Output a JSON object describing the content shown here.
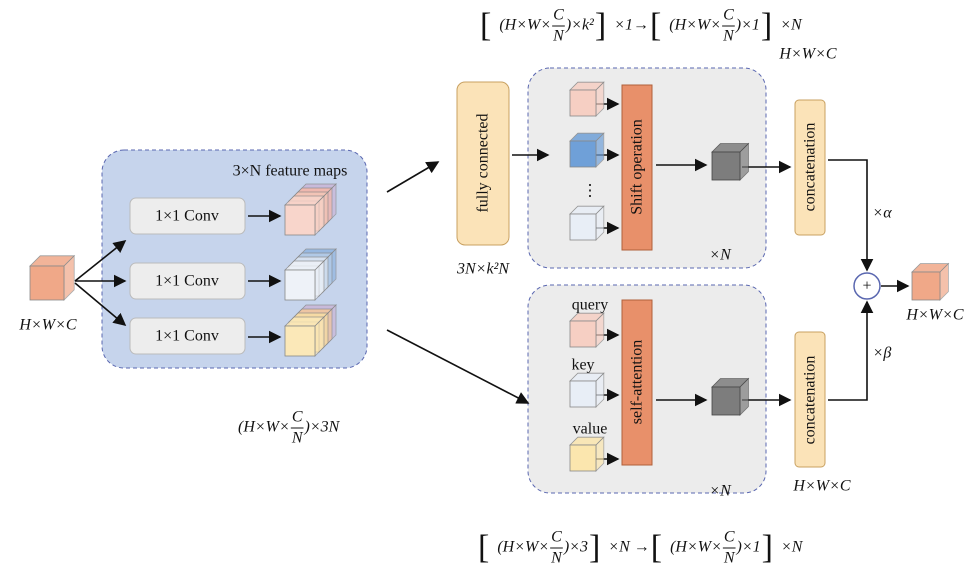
{
  "input": {
    "label": "H×W×C"
  },
  "feature_block": {
    "title": "3×N feature maps",
    "convs": [
      "1×1 Conv",
      "1×1 Conv",
      "1×1 Conv"
    ],
    "output_shape": [
      {
        "text": "(H×W×"
      },
      {
        "num": "C",
        "den": "N"
      },
      {
        "text": ")×3N"
      }
    ]
  },
  "shift_branch": {
    "formula": [
      {
        "text": "["
      },
      {
        "text": "(H×W×"
      },
      {
        "num": "C",
        "den": "N"
      },
      {
        "text": ")×k²"
      },
      {
        "text": "]"
      },
      {
        "text": "×1→"
      },
      {
        "text": "["
      },
      {
        "text": "(H×W×"
      },
      {
        "num": "C",
        "den": "N"
      },
      {
        "text": ")×1"
      },
      {
        "text": "]"
      },
      {
        "text": "×N"
      }
    ],
    "fc": "fully connected",
    "fc_shape": "3N×k²N",
    "ellipsis": "⋮",
    "operation": "Shift operation",
    "repeat": "×N",
    "concat": "concatenation",
    "concat_shape": "H×W×C",
    "weight": "×α"
  },
  "attention_branch": {
    "formula": [
      {
        "text": "["
      },
      {
        "text": "(H×W×"
      },
      {
        "num": "C",
        "den": "N"
      },
      {
        "text": ")×3"
      },
      {
        "text": "]"
      },
      {
        "text": "×N →"
      },
      {
        "text": "["
      },
      {
        "text": "(H×W×"
      },
      {
        "num": "C",
        "den": "N"
      },
      {
        "text": ")×1"
      },
      {
        "text": "]"
      },
      {
        "text": "×N"
      }
    ],
    "inputs": [
      "query",
      "key",
      "value"
    ],
    "operation": "self-attention",
    "repeat": "×N",
    "concat": "concatenation",
    "concat_shape": "H×W×C",
    "weight": "×β"
  },
  "fusion": {
    "operator": "+",
    "output_label": "H×W×C"
  }
}
